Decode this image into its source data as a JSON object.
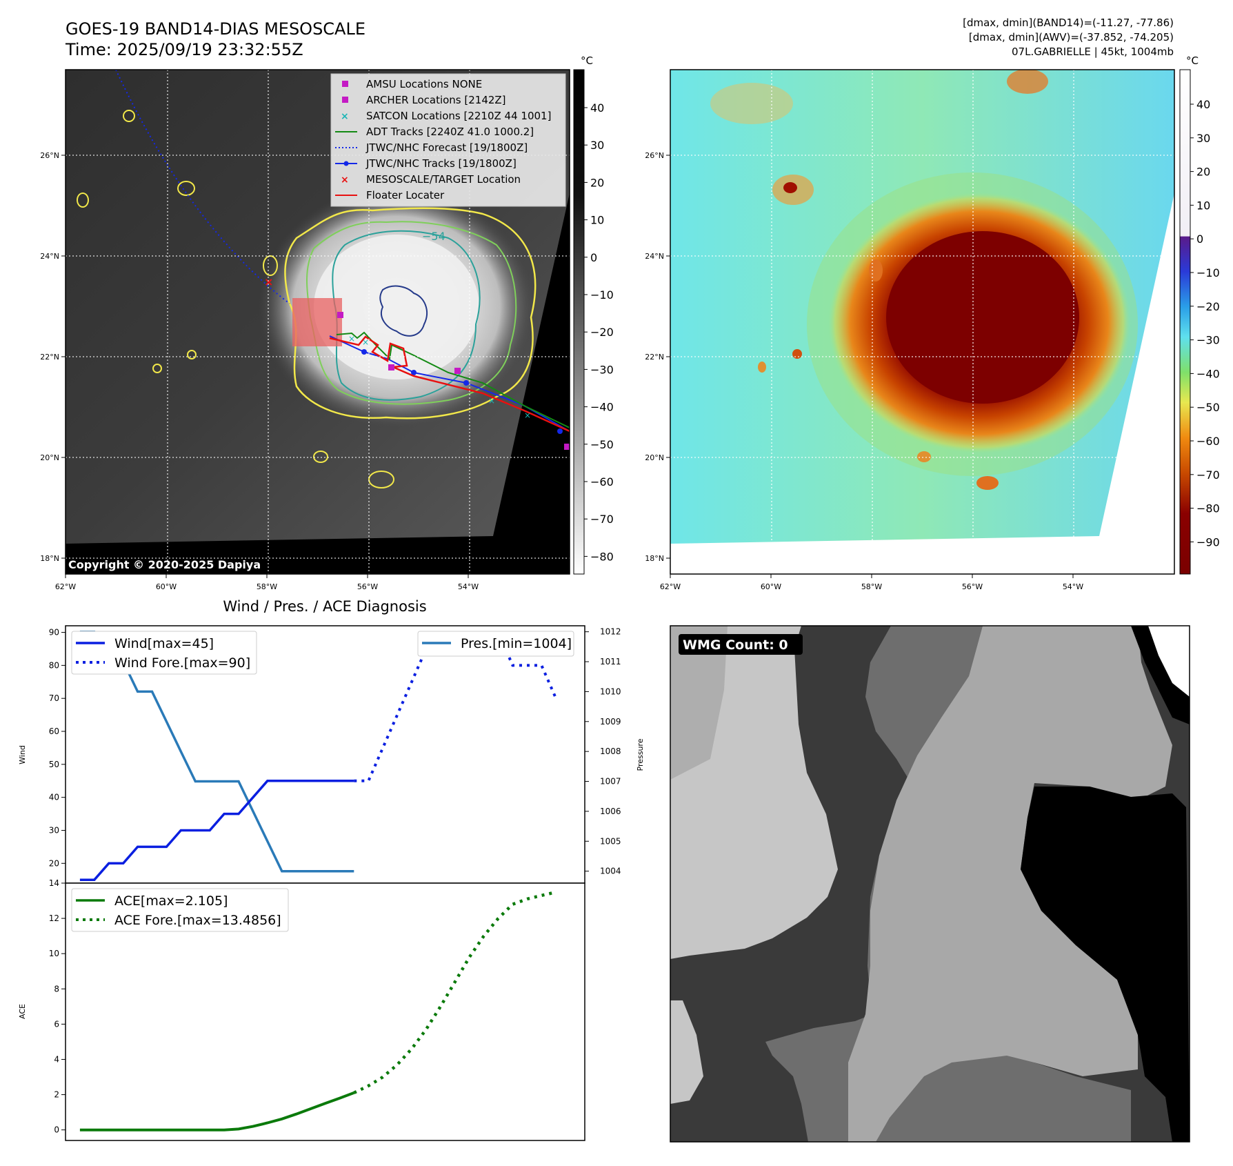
{
  "header": {
    "title_line1": "GOES-19 BAND14-DIAS MESOSCALE",
    "title_line2": "Time: 2025/09/19 23:32:55Z",
    "info_line1": "[dmax, dmin](BAND14)=(-11.27, -77.86)",
    "info_line2": "[dmax, dmin](AWV)=(-37.852, -74.205)",
    "info_line3": "07L.GABRIELLE | 45kt, 1004mb"
  },
  "colors": {
    "wind": "#0a1fe0",
    "pressure": "#2a7ab8",
    "ace": "#0b7a0b",
    "adt": "#138a13",
    "jtwc": "#1428e8",
    "floater": "#e81010",
    "amsu": "#c41ac4",
    "satcon": "#1bb5b5",
    "contour_yellow": "#f2e84a",
    "contour_teal": "#2aa19a",
    "contour_navy": "#253a8a"
  },
  "map_panel": {
    "lon_ticks": [
      "62°W",
      "60°W",
      "58°W",
      "56°W",
      "54°W"
    ],
    "lat_ticks": [
      "26°N",
      "24°N",
      "22°N",
      "20°N",
      "18°N"
    ],
    "colorbar_unit": "°C",
    "colorbar_ticks": [
      "40",
      "30",
      "20",
      "10",
      "0",
      "−10",
      "−20",
      "−30",
      "−40",
      "−50",
      "−60",
      "−70",
      "−80"
    ],
    "copyright": "Copyright © 2020-2025 Dapiya",
    "contour_label": "−54",
    "legend": [
      {
        "label": "AMSU Locations NONE",
        "marker": "square",
        "color": "#c41ac4"
      },
      {
        "label": "ARCHER Locations [2142Z]",
        "marker": "square",
        "color": "#c41ac4"
      },
      {
        "label": "SATCON Locations [2210Z 44 1001]",
        "marker": "x",
        "color": "#1bb5b5"
      },
      {
        "label": "ADT Tracks [2240Z 41.0 1000.2]",
        "marker": "line",
        "color": "#138a13"
      },
      {
        "label": "JTWC/NHC Forecast [19/1800Z]",
        "marker": "dotted",
        "color": "#1428e8"
      },
      {
        "label": "JTWC/NHC Tracks [19/1800Z]",
        "marker": "dotline",
        "color": "#1428e8"
      },
      {
        "label": "MESOSCALE/TARGET Location",
        "marker": "x",
        "color": "#e81010"
      },
      {
        "label": "Floater Locater",
        "marker": "line",
        "color": "#e81010"
      }
    ]
  },
  "awv_panel": {
    "lon_ticks": [
      "62°W",
      "60°W",
      "58°W",
      "56°W",
      "54°W"
    ],
    "lat_ticks": [
      "26°N",
      "24°N",
      "22°N",
      "20°N",
      "18°N"
    ],
    "colorbar_unit": "°C",
    "colorbar_ticks": [
      "40",
      "30",
      "20",
      "10",
      "0",
      "−10",
      "−20",
      "−30",
      "−40",
      "−50",
      "−60",
      "−70",
      "−80",
      "−90"
    ]
  },
  "diag_panel": {
    "title": "Wind / Pres. / ACE Diagnosis",
    "wind_ylabel": "Wind",
    "pres_ylabel": "Pressure",
    "ace_ylabel": "ACE",
    "legend_wind": "Wind[max=45]",
    "legend_wind_fore": "Wind Fore.[max=90]",
    "legend_pres": "Pres.[min=1004]",
    "legend_ace": "ACE[max=2.105]",
    "legend_ace_fore": "ACE Fore.[max=13.4856]"
  },
  "wmg_panel": {
    "label": "WMG Count: 0"
  },
  "chart_data": [
    {
      "type": "line",
      "name": "wind",
      "ylim": [
        14,
        92
      ],
      "yticks": [
        20,
        30,
        40,
        50,
        60,
        70,
        80,
        90
      ],
      "xlim": [
        -1,
        28
      ],
      "x": [
        0,
        1,
        2,
        3,
        4,
        5,
        6,
        7,
        8,
        9,
        10,
        11,
        12,
        13,
        14,
        15,
        16,
        17,
        18,
        19
      ],
      "values": [
        15,
        15,
        20,
        20,
        25,
        25,
        25,
        30,
        30,
        30,
        35,
        35,
        40,
        45,
        45,
        45,
        45,
        45,
        45,
        45
      ],
      "forecast_x": [
        19,
        20,
        21,
        22,
        23,
        24,
        25,
        26,
        27,
        28,
        29,
        30,
        31,
        32,
        33
      ],
      "forecast_values": [
        45,
        45,
        55,
        65,
        75,
        85,
        90,
        90,
        90,
        90,
        90,
        80,
        80,
        80,
        70
      ]
    },
    {
      "type": "line",
      "name": "pressure",
      "ylim": [
        1003.6,
        1012.2
      ],
      "yticks": [
        1004,
        1005,
        1006,
        1007,
        1008,
        1009,
        1010,
        1011,
        1012
      ],
      "x": [
        0,
        1,
        2,
        3,
        4,
        5,
        6,
        7,
        8,
        9,
        10,
        11,
        12,
        13,
        14,
        15,
        16,
        17,
        18,
        19
      ],
      "values": [
        1012,
        1012,
        1011,
        1011,
        1010,
        1010,
        1009,
        1008,
        1007,
        1007,
        1007,
        1007,
        1006,
        1005,
        1004,
        1004,
        1004,
        1004,
        1004,
        1004
      ]
    },
    {
      "type": "line",
      "name": "ace",
      "ylim": [
        -0.6,
        14
      ],
      "yticks": [
        0,
        2,
        4,
        6,
        8,
        10,
        12,
        14
      ],
      "x": [
        0,
        1,
        2,
        3,
        4,
        5,
        6,
        7,
        8,
        9,
        10,
        11,
        12,
        13,
        14,
        15,
        16,
        17,
        18,
        19
      ],
      "values": [
        0,
        0,
        0,
        0,
        0,
        0,
        0,
        0,
        0,
        0,
        0,
        0.05,
        0.2,
        0.4,
        0.62,
        0.9,
        1.2,
        1.5,
        1.8,
        2.105
      ],
      "forecast_x": [
        19,
        20,
        21,
        22,
        23,
        24,
        25,
        26,
        27,
        28,
        29,
        30,
        31,
        32,
        33
      ],
      "forecast_values": [
        2.105,
        2.5,
        3.0,
        3.7,
        4.6,
        5.7,
        7.0,
        8.4,
        9.8,
        11.0,
        12.0,
        12.8,
        13.1,
        13.3,
        13.4856
      ]
    }
  ]
}
